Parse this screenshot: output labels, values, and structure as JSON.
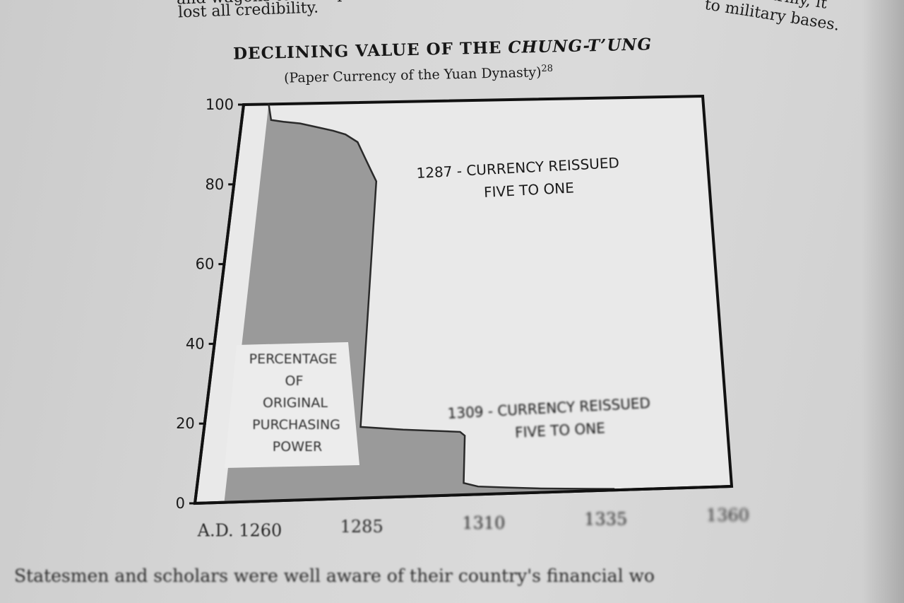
{
  "book_text": {
    "top_left_line": "lost all credibility.",
    "top_left_partial": "and wagons to transpor",
    "top_right_partial": "army, it",
    "top_right_line": "to military bases.",
    "bottom_line": "Statesmen and scholars were well aware of their country's financial wo"
  },
  "chart_data": {
    "type": "area",
    "title_prefix": "DECLINING VALUE OF THE ",
    "title_italic": "CHUNG-T’UNG",
    "subtitle": "(Paper Currency of the Yuan Dynasty)",
    "subtitle_sup": "28",
    "x": [
      1260,
      1261,
      1264,
      1268,
      1272,
      1276,
      1279,
      1282,
      1284,
      1286,
      1287,
      1287.01,
      1296,
      1308,
      1309,
      1309.01,
      1312,
      1318,
      1325,
      1335,
      1340
    ],
    "y": [
      100,
      96,
      95.5,
      95,
      94,
      93,
      92,
      90,
      86,
      82,
      80,
      18,
      17,
      16,
      15,
      3,
      2,
      1.5,
      1,
      0.5,
      0.3
    ],
    "xlim": [
      1254,
      1364
    ],
    "ylim": [
      0,
      100
    ],
    "y_ticks": [
      "0",
      "20",
      "40",
      "60",
      "80",
      "100"
    ],
    "x_ticks": [
      {
        "value": 1260,
        "label": "A.D. 1260"
      },
      {
        "value": 1285,
        "label": "1285"
      },
      {
        "value": 1310,
        "label": "1310"
      },
      {
        "value": 1335,
        "label": "1335"
      },
      {
        "value": 1360,
        "label": "1360"
      }
    ],
    "annotations": [
      {
        "lines": [
          "1287 - CURRENCY REISSUED",
          "FIVE TO ONE"
        ]
      },
      {
        "lines": [
          "1309 - CURRENCY REISSUED",
          "FIVE TO ONE"
        ]
      }
    ],
    "legend_label": [
      "PERCENTAGE",
      "OF",
      "ORIGINAL",
      "PURCHASING",
      "POWER"
    ],
    "colors": {
      "fill": "#9a9a9a",
      "line": "#111111",
      "plot_bg": "#ececec"
    }
  }
}
